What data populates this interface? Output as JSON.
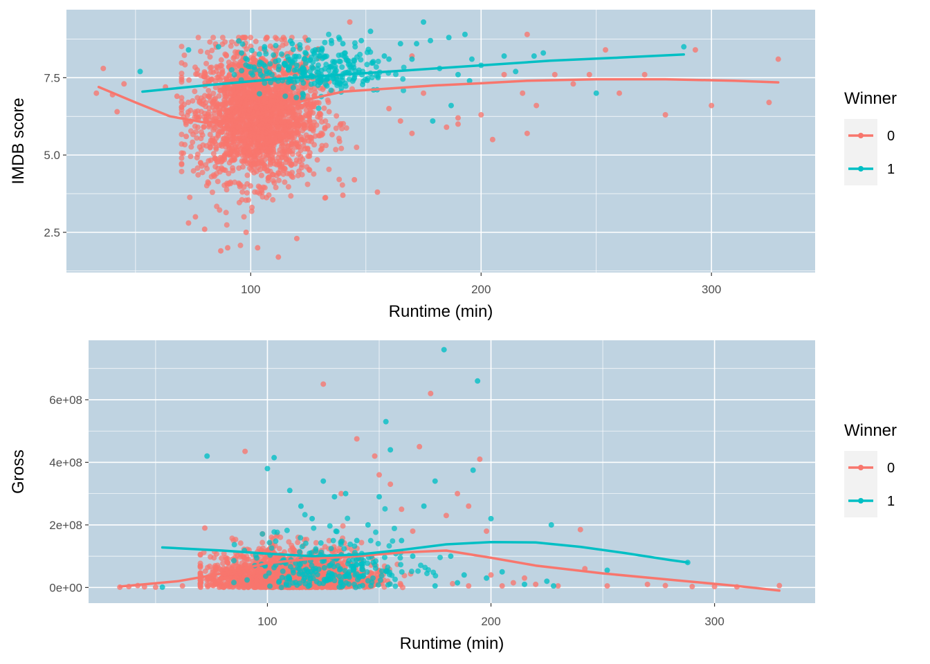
{
  "colors": {
    "panel_bg": "#bfd3e1",
    "grid": "#ffffff",
    "series_0": "#f8766d",
    "series_1": "#00bfc4",
    "legend_key_bg": "#f2f2f2"
  },
  "chart_data": [
    {
      "type": "scatter",
      "xlabel": "Runtime (min)",
      "ylabel": "IMDB score",
      "xlim": [
        20,
        345
      ],
      "ylim": [
        1.2,
        9.7
      ],
      "x_ticks": [
        100,
        200,
        300
      ],
      "x_tick_labels": [
        "100",
        "200",
        "300"
      ],
      "y_ticks": [
        2.5,
        5.0,
        7.5
      ],
      "y_tick_labels": [
        "2.5",
        "5.0",
        "7.5"
      ],
      "grid": true,
      "legend": {
        "title": "Winner",
        "position": "right",
        "entries": [
          "0",
          "1"
        ]
      },
      "series": [
        {
          "name": "0",
          "color": "#f8766d",
          "smooth": [
            [
              34,
              7.2
            ],
            [
              50,
              6.7
            ],
            [
              65,
              6.25
            ],
            [
              80,
              6.05
            ],
            [
              95,
              6.15
            ],
            [
              110,
              6.45
            ],
            [
              125,
              6.8
            ],
            [
              140,
              7.05
            ],
            [
              160,
              7.15
            ],
            [
              180,
              7.25
            ],
            [
              200,
              7.32
            ],
            [
              220,
              7.4
            ],
            [
              250,
              7.45
            ],
            [
              280,
              7.45
            ],
            [
              310,
              7.4
            ],
            [
              329,
              7.35
            ]
          ],
          "outliers": [
            [
              33,
              7.0
            ],
            [
              36,
              7.8
            ],
            [
              40,
              6.95
            ],
            [
              42,
              6.4
            ],
            [
              45,
              7.3
            ],
            [
              63,
              7.2
            ],
            [
              68,
              6.9
            ],
            [
              72,
              5.6
            ],
            [
              73,
              2.8
            ],
            [
              76,
              3.0
            ],
            [
              80,
              2.6
            ],
            [
              87,
              1.9
            ],
            [
              90,
              2.0
            ],
            [
              98,
              2.5
            ],
            [
              103,
              2.0
            ],
            [
              112,
              1.7
            ],
            [
              120,
              2.3
            ],
            [
              140,
              3.7
            ],
            [
              145,
              4.2
            ],
            [
              155,
              3.8
            ],
            [
              165,
              6.1
            ],
            [
              170,
              5.7
            ],
            [
              185,
              5.9
            ],
            [
              190,
              6.2
            ],
            [
              200,
              6.3
            ],
            [
              205,
              5.5
            ],
            [
              218,
              7.0
            ],
            [
              220,
              5.7
            ],
            [
              224,
              6.6
            ],
            [
              232,
              7.6
            ],
            [
              240,
              7.3
            ],
            [
              247,
              7.6
            ],
            [
              254,
              8.4
            ],
            [
              260,
              7.0
            ],
            [
              271,
              7.6
            ],
            [
              280,
              6.3
            ],
            [
              293,
              8.4
            ],
            [
              300,
              6.6
            ],
            [
              329,
              8.1
            ],
            [
              325,
              6.7
            ],
            [
              170,
              8.2
            ],
            [
              175,
              7.0
            ],
            [
              210,
              7.6
            ],
            [
              220,
              8.9
            ],
            [
              143,
              9.3
            ],
            [
              160,
              6.5
            ],
            [
              190,
              6.0
            ]
          ],
          "cluster": {
            "n": 2200,
            "x_center": 103,
            "x_spread": 13,
            "x_min": 70,
            "x_max": 175,
            "y_center": 6.3,
            "y_spread": 1.05,
            "y_min": 1.8,
            "y_max": 8.8
          }
        },
        {
          "name": "1",
          "color": "#00bfc4",
          "smooth": [
            [
              53,
              7.05
            ],
            [
              80,
              7.25
            ],
            [
              110,
              7.45
            ],
            [
              140,
              7.6
            ],
            [
              170,
              7.75
            ],
            [
              200,
              7.9
            ],
            [
              230,
              8.05
            ],
            [
              260,
              8.15
            ],
            [
              288,
              8.25
            ]
          ],
          "outliers": [
            [
              52,
              7.7
            ],
            [
              73,
              8.4
            ],
            [
              86,
              8.5
            ],
            [
              96,
              8.3
            ],
            [
              106,
              8.5
            ],
            [
              118,
              8.6
            ],
            [
              128,
              8.4
            ],
            [
              135,
              8.7
            ],
            [
              140,
              8.6
            ],
            [
              148,
              8.7
            ],
            [
              152,
              9.0
            ],
            [
              158,
              8.2
            ],
            [
              165,
              8.6
            ],
            [
              170,
              8.1
            ],
            [
              172,
              8.6
            ],
            [
              175,
              9.3
            ],
            [
              178,
              8.7
            ],
            [
              182,
              7.8
            ],
            [
              186,
              8.8
            ],
            [
              190,
              7.6
            ],
            [
              193,
              8.9
            ],
            [
              196,
              8.1
            ],
            [
              200,
              7.9
            ],
            [
              210,
              8.2
            ],
            [
              215,
              7.7
            ],
            [
              223,
              8.2
            ],
            [
              227,
              8.3
            ],
            [
              250,
              7.0
            ],
            [
              288,
              8.5
            ],
            [
              120,
              7.9
            ],
            [
              130,
              8.2
            ],
            [
              145,
              7.5
            ],
            [
              160,
              8.1
            ],
            [
              179,
              6.1
            ],
            [
              187,
              6.6
            ],
            [
              195,
              7.4
            ]
          ],
          "cluster": {
            "n": 260,
            "x_center": 128,
            "x_spread": 16,
            "x_min": 85,
            "x_max": 190,
            "y_center": 7.8,
            "y_spread": 0.42,
            "y_min": 6.3,
            "y_max": 8.9
          }
        }
      ]
    },
    {
      "type": "scatter",
      "xlabel": "Runtime (min)",
      "ylabel": "Gross",
      "xlim": [
        20,
        345
      ],
      "ylim": [
        -50000000,
        790000000
      ],
      "x_ticks": [
        100,
        200,
        300
      ],
      "x_tick_labels": [
        "100",
        "200",
        "300"
      ],
      "y_ticks": [
        0,
        200000000,
        400000000,
        600000000
      ],
      "y_tick_labels": [
        "0e+00",
        "2e+08",
        "4e+08",
        "6e+08"
      ],
      "grid": true,
      "legend": {
        "title": "Winner",
        "position": "right",
        "entries": [
          "0",
          "1"
        ]
      },
      "series": [
        {
          "name": "0",
          "color": "#f8766d",
          "smooth": [
            [
              34,
              3000000
            ],
            [
              60,
              20000000
            ],
            [
              80,
              45000000
            ],
            [
              100,
              78000000
            ],
            [
              120,
              92000000
            ],
            [
              140,
              100000000
            ],
            [
              160,
              112000000
            ],
            [
              180,
              118000000
            ],
            [
              200,
              95000000
            ],
            [
              220,
              70000000
            ],
            [
              250,
              45000000
            ],
            [
              280,
              25000000
            ],
            [
              310,
              5000000
            ],
            [
              329,
              -10000000
            ]
          ],
          "outliers": [
            [
              34,
              1000000
            ],
            [
              38,
              3000000
            ],
            [
              42,
              6000000
            ],
            [
              45,
              2000000
            ],
            [
              50,
              1000000
            ],
            [
              62,
              5000000
            ],
            [
              70,
              8000000
            ],
            [
              72,
              190000000
            ],
            [
              90,
              435000000
            ],
            [
              125,
              650000000
            ],
            [
              133,
              300000000
            ],
            [
              140,
              475000000
            ],
            [
              148,
              420000000
            ],
            [
              150,
              360000000
            ],
            [
              155,
              330000000
            ],
            [
              160,
              250000000
            ],
            [
              165,
              180000000
            ],
            [
              168,
              450000000
            ],
            [
              173,
              620000000
            ],
            [
              180,
              230000000
            ],
            [
              185,
              300000000
            ],
            [
              190,
              260000000
            ],
            [
              195,
              410000000
            ],
            [
              198,
              180000000
            ],
            [
              205,
              5000000
            ],
            [
              215,
              30000000
            ],
            [
              220,
              10000000
            ],
            [
              230,
              5000000
            ],
            [
              240,
              185000000
            ],
            [
              242,
              60000000
            ],
            [
              252,
              5000000
            ],
            [
              270,
              10000000
            ],
            [
              278,
              6000000
            ],
            [
              290,
              3000000
            ],
            [
              300,
              3000000
            ],
            [
              310,
              2000000
            ],
            [
              329,
              6000000
            ],
            [
              190,
              5000000
            ],
            [
              200,
              40000000
            ],
            [
              210,
              15000000
            ]
          ],
          "cluster": {
            "n": 2200,
            "x_center": 110,
            "x_spread": 17,
            "x_min": 70,
            "x_max": 190,
            "y_center": 30000000,
            "y_spread": 45000000,
            "y_min": 0,
            "y_max": 330000000
          }
        },
        {
          "name": "1",
          "color": "#00bfc4",
          "smooth": [
            [
              53,
              128000000
            ],
            [
              80,
              118000000
            ],
            [
              100,
              108000000
            ],
            [
              120,
              100000000
            ],
            [
              140,
              105000000
            ],
            [
              160,
              120000000
            ],
            [
              180,
              138000000
            ],
            [
              200,
              145000000
            ],
            [
              220,
              144000000
            ],
            [
              240,
              130000000
            ],
            [
              260,
              110000000
            ],
            [
              280,
              88000000
            ],
            [
              288,
              80000000
            ]
          ],
          "outliers": [
            [
              53,
              1000000
            ],
            [
              73,
              420000000
            ],
            [
              100,
              380000000
            ],
            [
              103,
              415000000
            ],
            [
              110,
              310000000
            ],
            [
              115,
              260000000
            ],
            [
              120,
              220000000
            ],
            [
              125,
              340000000
            ],
            [
              130,
              290000000
            ],
            [
              135,
              300000000
            ],
            [
              140,
              150000000
            ],
            [
              145,
              200000000
            ],
            [
              150,
              290000000
            ],
            [
              153,
              530000000
            ],
            [
              155,
              440000000
            ],
            [
              160,
              150000000
            ],
            [
              165,
              100000000
            ],
            [
              170,
              260000000
            ],
            [
              175,
              340000000
            ],
            [
              179,
              760000000
            ],
            [
              182,
              100000000
            ],
            [
              188,
              40000000
            ],
            [
              192,
              375000000
            ],
            [
              194,
              660000000
            ],
            [
              200,
              220000000
            ],
            [
              205,
              50000000
            ],
            [
              215,
              10000000
            ],
            [
              225,
              20000000
            ],
            [
              227,
              200000000
            ],
            [
              228,
              5000000
            ],
            [
              252,
              55000000
            ],
            [
              288,
              80000000
            ],
            [
              175,
              5000000
            ],
            [
              185,
              15000000
            ],
            [
              198,
              30000000
            ]
          ],
          "cluster": {
            "n": 250,
            "x_center": 130,
            "x_spread": 20,
            "x_min": 85,
            "x_max": 200,
            "y_center": 75000000,
            "y_spread": 55000000,
            "y_min": 0,
            "y_max": 260000000
          }
        }
      ]
    }
  ]
}
